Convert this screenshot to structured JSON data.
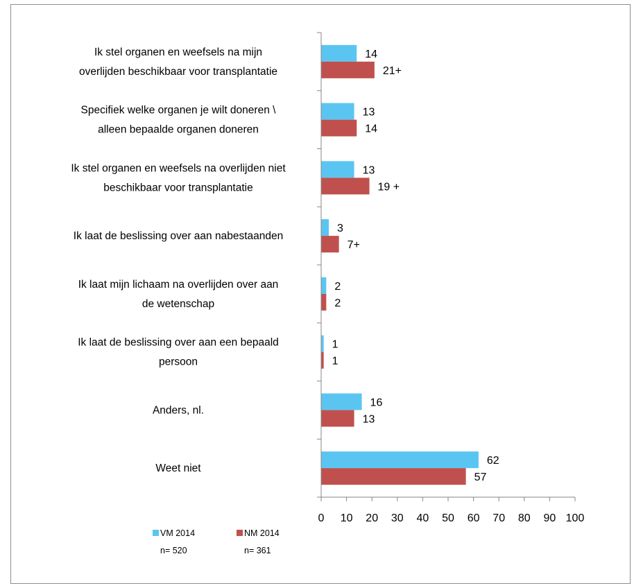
{
  "colors": {
    "vm": "#5bc5f2",
    "nm": "#c0504d",
    "axis": "#868686"
  },
  "chart_data": {
    "type": "bar",
    "orientation": "horizontal",
    "categories": [
      [
        "Ik stel organen en weefsels na mijn",
        "overlijden beschikbaar voor transplantatie"
      ],
      [
        "Specifiek welke organen je wilt doneren \\",
        "alleen bepaalde organen doneren"
      ],
      [
        "Ik stel organen en weefsels na overlijden niet",
        "beschikbaar voor transplantatie"
      ],
      [
        "Ik laat de beslissing over aan nabestaanden"
      ],
      [
        "Ik laat mijn lichaam na overlijden over aan",
        "de wetenschap"
      ],
      [
        "Ik laat de beslissing over aan een bepaald",
        "persoon"
      ],
      [
        "Anders, nl."
      ],
      [
        "Weet niet"
      ]
    ],
    "series": [
      {
        "name": "VM 2014",
        "n_label": "n= 520",
        "color": "#5bc5f2",
        "values": [
          14,
          13,
          13,
          3,
          2,
          1,
          16,
          62
        ],
        "labels": [
          "14",
          "13",
          "13",
          "3",
          "2",
          "1",
          "16",
          "62"
        ]
      },
      {
        "name": "NM 2014",
        "n_label": "n= 361",
        "color": "#c0504d",
        "values": [
          21,
          14,
          19,
          7,
          2,
          1,
          13,
          57
        ],
        "labels": [
          "21+",
          "14",
          "19 +",
          "7+",
          "2",
          "1",
          "13",
          "57"
        ]
      }
    ],
    "xlim": [
      0,
      100
    ],
    "xticks": [
      "0",
      "10",
      "20",
      "30",
      "40",
      "50",
      "60",
      "70",
      "80",
      "90",
      "100"
    ],
    "grid": false,
    "legend": "bottom"
  }
}
